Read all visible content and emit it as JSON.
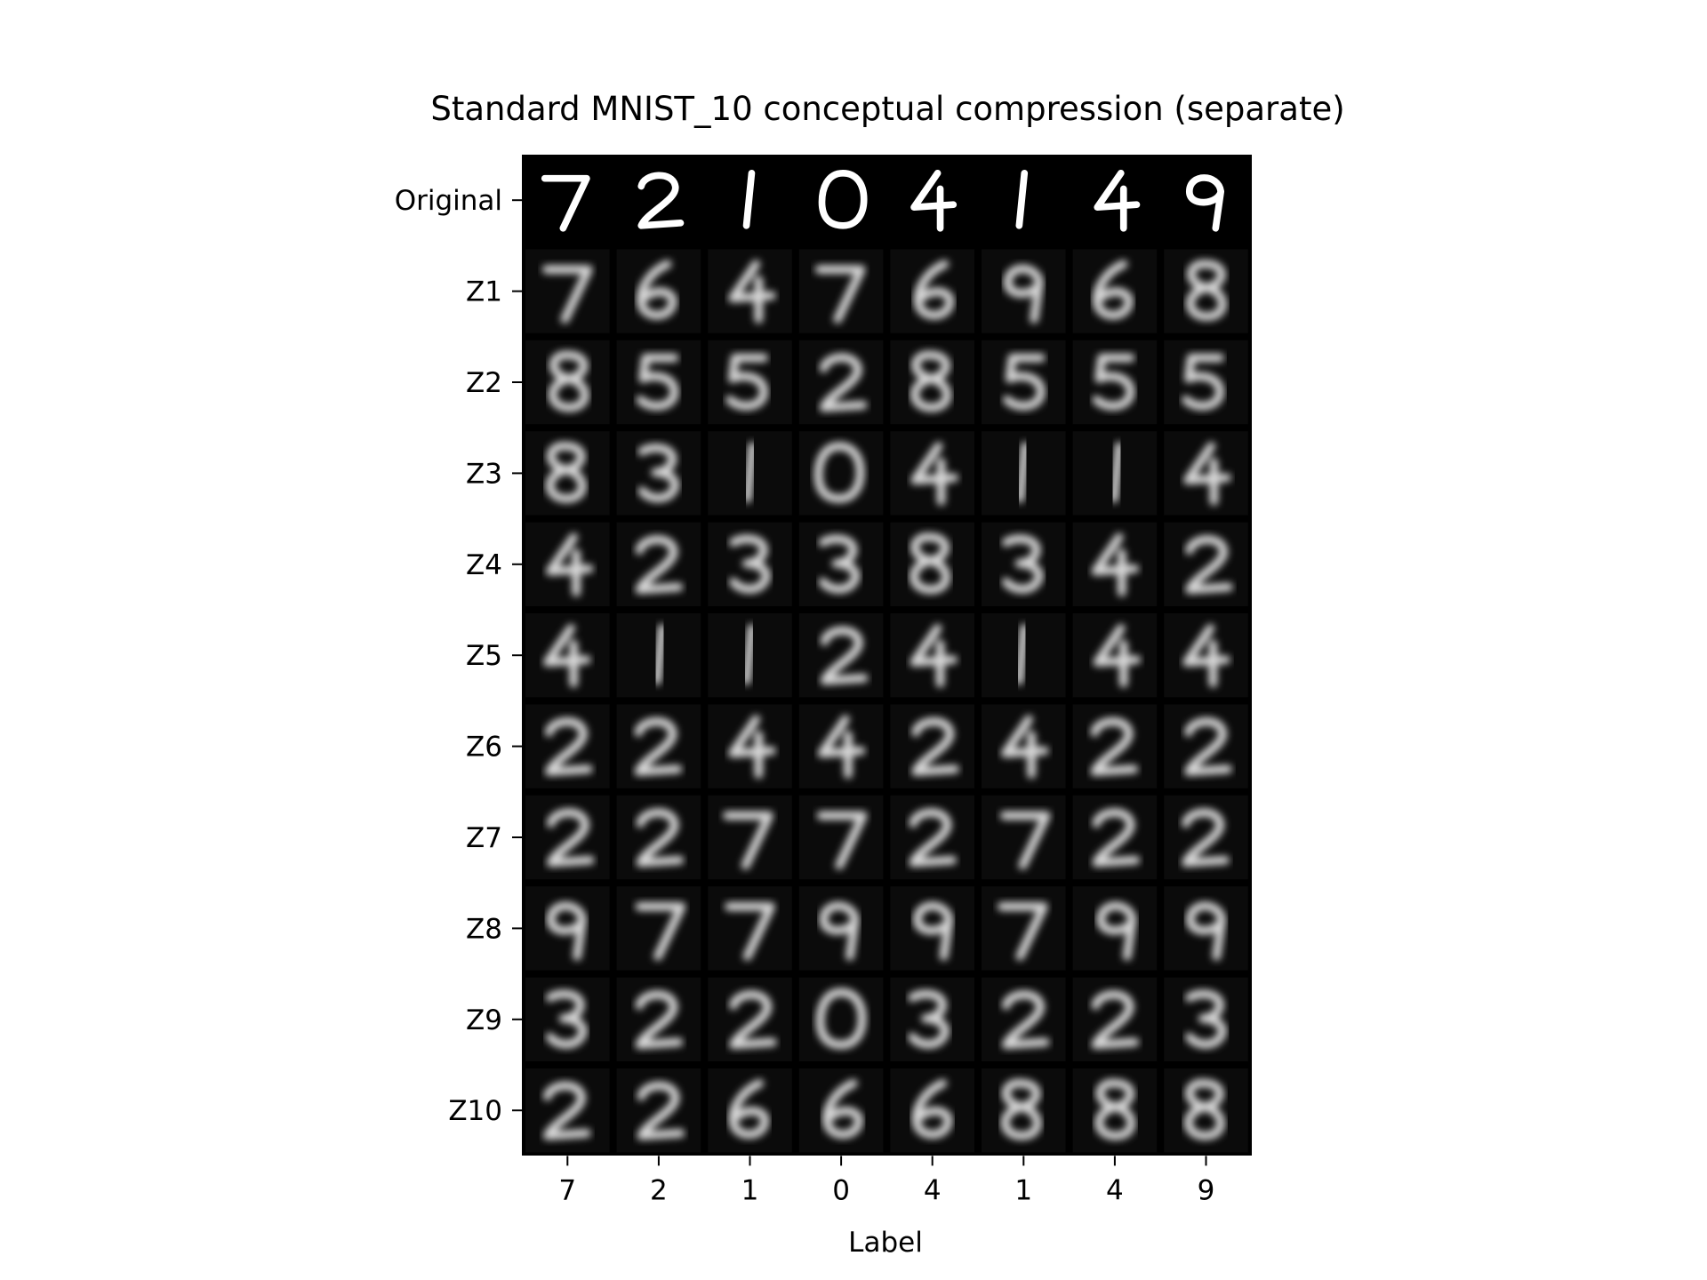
{
  "chart_data": {
    "type": "heatmap",
    "title": "Standard MNIST_10 conceptual compression (separate)",
    "xlabel": "Label",
    "ylabel": "",
    "colormap": "gray",
    "background_color": "#000000",
    "digit_color": "#ffffff",
    "x_tick_labels": [
      "7",
      "2",
      "1",
      "0",
      "4",
      "1",
      "4",
      "9"
    ],
    "y_tick_labels": [
      "Original",
      "Z1",
      "Z2",
      "Z3",
      "Z4",
      "Z5",
      "Z6",
      "Z7",
      "Z8",
      "Z9",
      "Z10"
    ],
    "cells": [
      [
        "7",
        "2",
        "1",
        "0",
        "4",
        "1",
        "4",
        "9"
      ],
      [
        "7",
        "6",
        "4",
        "7",
        "6",
        "9",
        "6",
        "8"
      ],
      [
        "8",
        "5",
        "5",
        "2",
        "8",
        "5",
        "5",
        "5"
      ],
      [
        "8",
        "3",
        "1",
        "0",
        "4",
        "1",
        "1",
        "4"
      ],
      [
        "4",
        "2",
        "3",
        "3",
        "8",
        "3",
        "4",
        "2"
      ],
      [
        "4",
        "1",
        "1",
        "2",
        "4",
        "1",
        "4",
        "4"
      ],
      [
        "2",
        "2",
        "4",
        "4",
        "2",
        "4",
        "2",
        "2"
      ],
      [
        "2",
        "2",
        "7",
        "7",
        "2",
        "7",
        "2",
        "2"
      ],
      [
        "9",
        "7",
        "7",
        "9",
        "9",
        "7",
        "9",
        "9"
      ],
      [
        "3",
        "2",
        "2",
        "0",
        "3",
        "2",
        "2",
        "3"
      ],
      [
        "2",
        "2",
        "6",
        "6",
        "6",
        "8",
        "8",
        "8"
      ]
    ]
  }
}
